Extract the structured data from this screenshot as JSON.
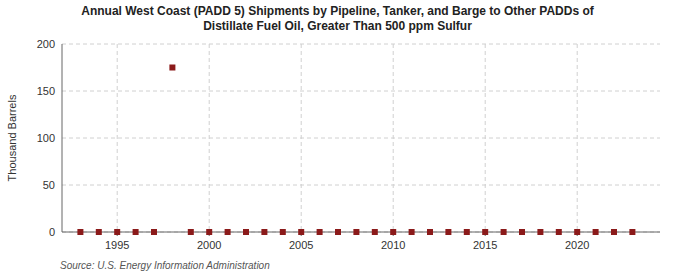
{
  "chart_data": {
    "type": "scatter",
    "title": "Annual West Coast (PADD 5) Shipments by Pipeline, Tanker, and Barge to Other PADDs of\nDistillate Fuel Oil, Greater Than 500 ppm Sulfur",
    "ylabel": "Thousand Barrels",
    "source": "Source: U.S. Energy Information Administration",
    "x": [
      1993,
      1994,
      1995,
      1996,
      1997,
      1998,
      1999,
      2000,
      2001,
      2002,
      2003,
      2004,
      2005,
      2006,
      2007,
      2008,
      2009,
      2010,
      2011,
      2012,
      2013,
      2014,
      2015,
      2016,
      2017,
      2018,
      2019,
      2020,
      2021,
      2022,
      2023
    ],
    "values": [
      0,
      0,
      0,
      0,
      0,
      175,
      0,
      0,
      0,
      0,
      0,
      0,
      0,
      0,
      0,
      0,
      0,
      0,
      0,
      0,
      0,
      0,
      0,
      0,
      0,
      0,
      0,
      0,
      0,
      0,
      0
    ],
    "color": "#8b1a1a",
    "marker": "square",
    "xlim": [
      1992,
      2024.5
    ],
    "ylim": [
      0,
      200
    ],
    "xticks": [
      1995,
      2000,
      2005,
      2010,
      2015,
      2020
    ],
    "yticks": [
      0,
      50,
      100,
      150,
      200
    ],
    "grid": true
  }
}
